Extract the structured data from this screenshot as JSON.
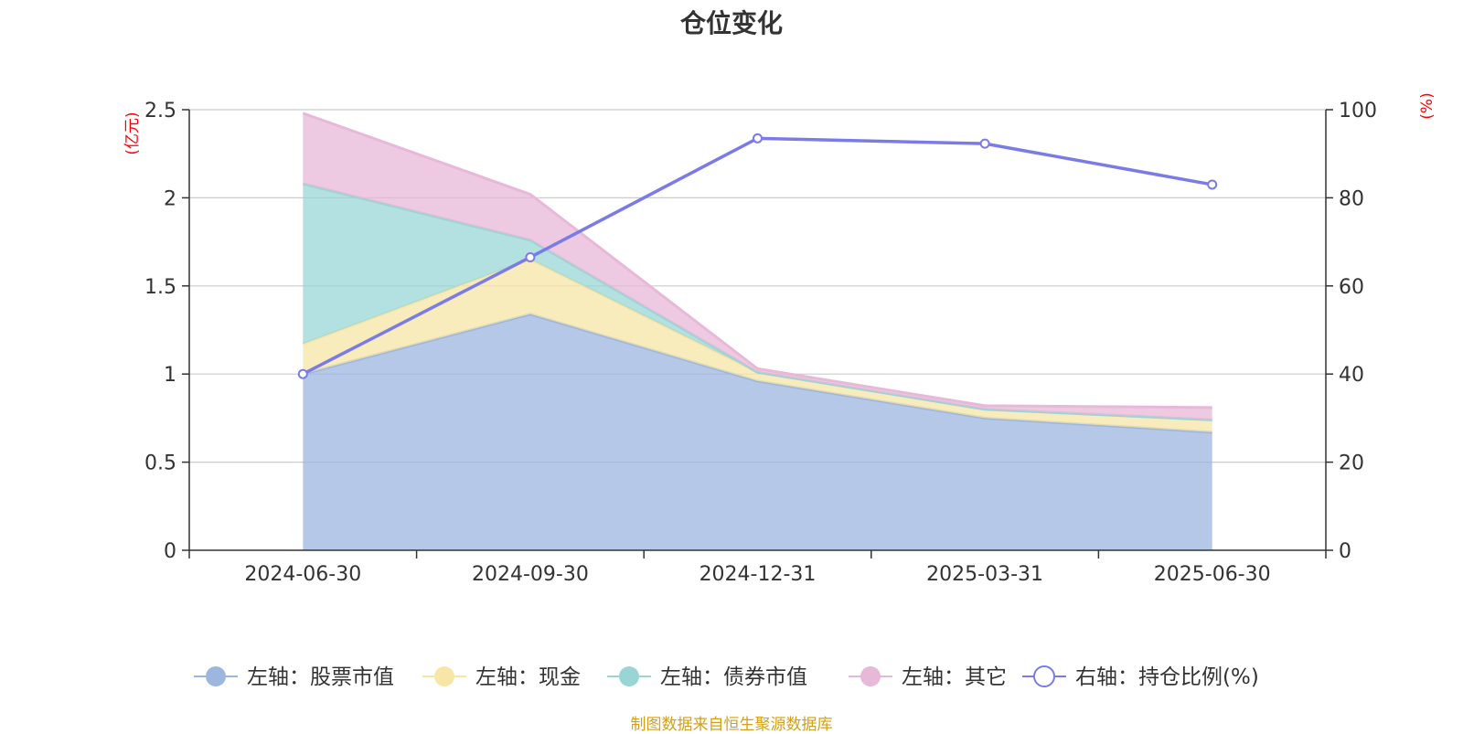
{
  "title": "仓位变化",
  "source_note": "制图数据来自恒生聚源数据库",
  "chart_data": {
    "type": "area",
    "title": "仓位变化",
    "categories": [
      "2024-06-30",
      "2024-09-30",
      "2024-12-31",
      "2025-03-31",
      "2025-06-30"
    ],
    "left_axis": {
      "unit": "(亿元)",
      "ylim": [
        0,
        2.5
      ],
      "ticks": [
        0,
        0.5,
        1,
        1.5,
        2,
        2.5
      ],
      "tick_labels": [
        "0",
        "0.5",
        "1",
        "1.5",
        "2",
        "2.5"
      ]
    },
    "right_axis": {
      "unit": "(%)",
      "ylim": [
        0,
        100
      ],
      "ticks": [
        0,
        20,
        40,
        60,
        80,
        100
      ],
      "tick_labels": [
        "0",
        "20",
        "40",
        "60",
        "80",
        "100"
      ]
    },
    "grid": true,
    "legend_position": "bottom",
    "stacked": true,
    "series": [
      {
        "name": "左轴：股票市值",
        "axis": "left",
        "type": "area",
        "color": "#9db6e0",
        "values": [
          1.0,
          1.34,
          0.96,
          0.75,
          0.67
        ]
      },
      {
        "name": "左轴：现金",
        "axis": "left",
        "type": "area",
        "color": "#f7e6a6",
        "values": [
          0.17,
          0.31,
          0.05,
          0.05,
          0.07
        ]
      },
      {
        "name": "左轴：债券市值",
        "axis": "left",
        "type": "area",
        "color": "#99d5d5",
        "values": [
          0.91,
          0.11,
          0,
          0,
          0
        ]
      },
      {
        "name": "左轴：其它",
        "axis": "left",
        "type": "area",
        "color": "#e8b8d8",
        "values": [
          0.4,
          0.26,
          0.02,
          0.02,
          0.07
        ]
      },
      {
        "name": "右轴：持仓比例(%)",
        "axis": "right",
        "type": "line",
        "color": "#7b7be8",
        "values": [
          40,
          66.5,
          93.5,
          92.3,
          83
        ]
      }
    ]
  }
}
